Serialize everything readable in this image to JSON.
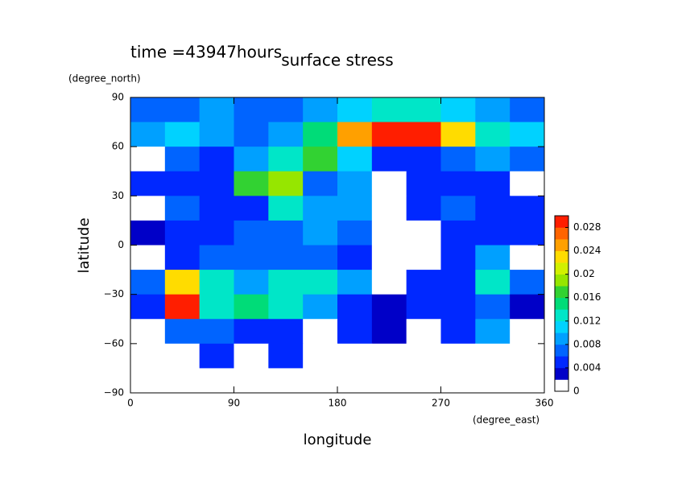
{
  "chart_data": {
    "type": "heatmap",
    "title": "surface stress",
    "subtitle": "time =43947hours",
    "x_label": "longitude",
    "y_label": "latitude",
    "x_unit": "(degree_east)",
    "y_unit": "(degree_north)",
    "x": [
      15,
      45,
      75,
      105,
      135,
      165,
      195,
      225,
      255,
      285,
      315,
      345
    ],
    "y": [
      82.5,
      67.5,
      52.5,
      37.5,
      22.5,
      7.5,
      -7.5,
      -22.5,
      -37.5,
      -52.5,
      -67.5,
      -82.5
    ],
    "z": [
      [
        0.006,
        0.006,
        0.008,
        0.006,
        0.006,
        0.008,
        0.01,
        0.012,
        0.012,
        0.01,
        0.008,
        0.006
      ],
      [
        0.008,
        0.01,
        0.008,
        0.006,
        0.008,
        0.014,
        0.024,
        0.028,
        0.03,
        0.022,
        0.012,
        0.01
      ],
      [
        0.001,
        0.006,
        0.004,
        0.008,
        0.012,
        0.016,
        0.01,
        0.004,
        0.004,
        0.006,
        0.008,
        0.006
      ],
      [
        0.004,
        0.004,
        0.004,
        0.016,
        0.018,
        0.006,
        0.008,
        0.001,
        0.004,
        0.004,
        0.004,
        0.001
      ],
      [
        0.001,
        0.006,
        0.004,
        0.004,
        0.012,
        0.008,
        0.008,
        0.001,
        0.004,
        0.006,
        0.004,
        0.004
      ],
      [
        0.002,
        0.004,
        0.004,
        0.006,
        0.006,
        0.008,
        0.006,
        0.001,
        0.001,
        0.004,
        0.004,
        0.004
      ],
      [
        0.001,
        0.004,
        0.006,
        0.006,
        0.006,
        0.006,
        0.004,
        0.001,
        0.001,
        0.004,
        0.008,
        0.001
      ],
      [
        0.006,
        0.022,
        0.012,
        0.008,
        0.012,
        0.012,
        0.008,
        0.001,
        0.004,
        0.004,
        0.012,
        0.006
      ],
      [
        0.004,
        0.03,
        0.012,
        0.014,
        0.012,
        0.008,
        0.004,
        0.002,
        0.004,
        0.004,
        0.006,
        0.002
      ],
      [
        0.001,
        0.006,
        0.006,
        0.004,
        0.004,
        0.001,
        0.004,
        0.002,
        0.001,
        0.004,
        0.008,
        0.001
      ],
      [
        0.001,
        0.001,
        0.004,
        0.001,
        0.004,
        0.001,
        0.001,
        0.001,
        0.001,
        0.001,
        0.001,
        0.001
      ],
      [
        0.001,
        0.001,
        0.001,
        0.001,
        0.001,
        0.001,
        0.001,
        0.001,
        0.001,
        0.001,
        0.001,
        0.001
      ]
    ],
    "xlim": [
      0,
      360
    ],
    "ylim": [
      -90,
      90
    ],
    "xticks": [
      0,
      90,
      180,
      270,
      360
    ],
    "yticks": [
      {
        "value": -90,
        "label": "−90"
      },
      {
        "value": -60,
        "label": "−60"
      },
      {
        "value": -30,
        "label": "−30"
      },
      0,
      30,
      60,
      90
    ],
    "zlim": [
      0,
      0.03
    ],
    "zticks": [
      0,
      0.004,
      0.008,
      0.012,
      0.016,
      0.02,
      0.024,
      0.028
    ],
    "colors": [
      "#ffffff",
      "#0000c8",
      "#0028ff",
      "#0064ff",
      "#00a0ff",
      "#00d2ff",
      "#00e6c8",
      "#00dc78",
      "#32d232",
      "#96e600",
      "#d2f000",
      "#ffdc00",
      "#ffa000",
      "#ff6400",
      "#ff1e00"
    ]
  }
}
